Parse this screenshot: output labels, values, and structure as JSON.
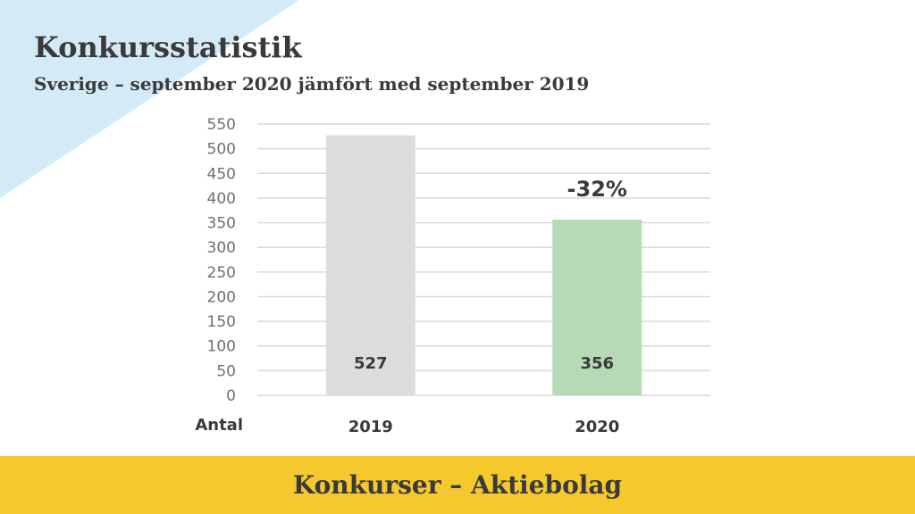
{
  "header": {
    "title": "Konkursstatistik",
    "subtitle": "Sverige – september 2020 jämfört med september 2019"
  },
  "chart_data": {
    "type": "bar",
    "categories": [
      "2019",
      "2020"
    ],
    "values": [
      527,
      356
    ],
    "data_labels": [
      "527",
      "356"
    ],
    "bar_colors": [
      "#dcdcdc",
      "#b5dab5"
    ],
    "ylim": [
      0,
      550
    ],
    "yticks": [
      0,
      50,
      100,
      150,
      200,
      250,
      300,
      350,
      400,
      450,
      500,
      550
    ],
    "xlabel": "Antal",
    "ylabel": "",
    "grid": true,
    "annotation": "-32%"
  },
  "footer": {
    "text": "Konkurser – Aktiebolag"
  },
  "colors": {
    "corner": "#d4eaf7",
    "footer": "#f5c82e",
    "text": "#3a3a3a",
    "grid": "#d9d9d9",
    "tick": "#6f6f6f"
  }
}
